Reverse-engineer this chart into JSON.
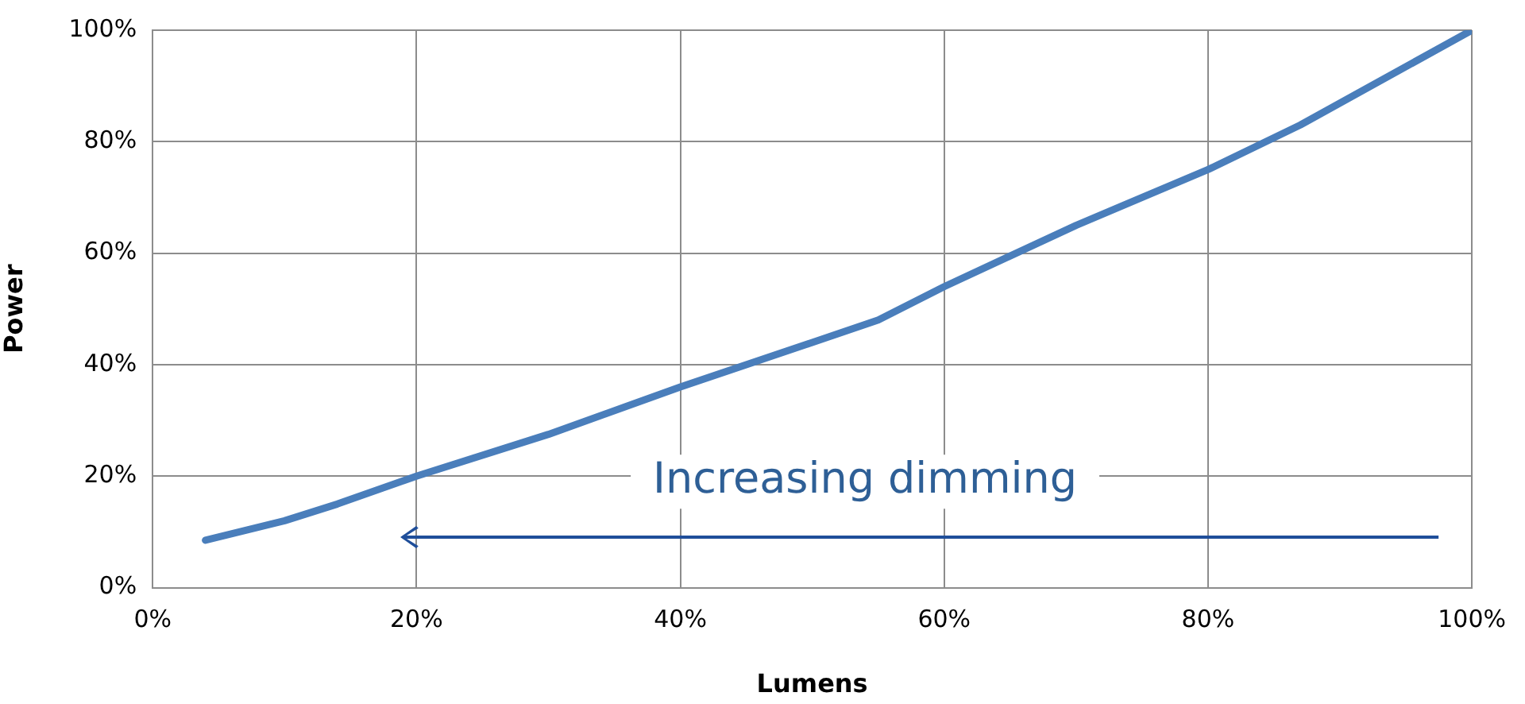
{
  "chart_data": {
    "type": "line",
    "xlabel": "Lumens",
    "ylabel": "Power",
    "annotations": [
      "Increasing dimming"
    ],
    "x": [
      4,
      10,
      14,
      20,
      30,
      40,
      50,
      55,
      60,
      70,
      80,
      87,
      100
    ],
    "series": [
      {
        "color": "#4a7ebb",
        "values": [
          8.5,
          12,
          15,
          20,
          27.5,
          36,
          44,
          48,
          54,
          65,
          75,
          83,
          100
        ]
      }
    ],
    "xlim": [
      0,
      100
    ],
    "ylim": [
      0,
      100
    ],
    "xticks": [
      {
        "value": 0,
        "label": "0%"
      },
      {
        "value": 20,
        "label": "20%"
      },
      {
        "value": 40,
        "label": "40%"
      },
      {
        "value": 60,
        "label": "60%"
      },
      {
        "value": 80,
        "label": "80%"
      },
      {
        "value": 100,
        "label": "100%"
      }
    ],
    "yticks": [
      {
        "value": 0,
        "label": "0%"
      },
      {
        "value": 20,
        "label": "20%"
      },
      {
        "value": 40,
        "label": "40%"
      },
      {
        "value": 60,
        "label": "60%"
      },
      {
        "value": 80,
        "label": "80%"
      },
      {
        "value": 100,
        "label": "100%"
      }
    ],
    "grid": true,
    "legend": false,
    "marker": "none",
    "line_style": "solid"
  }
}
